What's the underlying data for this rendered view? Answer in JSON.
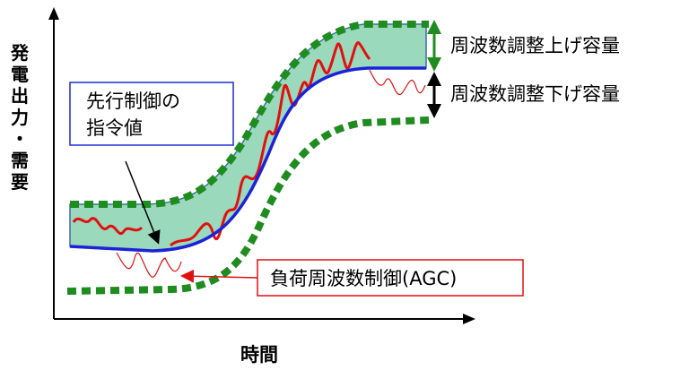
{
  "axes": {
    "y_label": [
      "発",
      "電",
      "出",
      "力",
      "・",
      "需",
      "要"
    ],
    "x_label": "時間"
  },
  "labels": {
    "feedforward_line1": "先行制御の",
    "feedforward_line2": "指令値",
    "agc": "負荷周波数制御(AGC)",
    "up_capacity": "周波数調整上げ容量",
    "down_capacity": "周波数調整下げ容量"
  },
  "colors": {
    "band_fill": "#9ad9bb",
    "dotted_band": "#1f8c1f",
    "command_line": "#1c22d8",
    "demand_line": "#e01010",
    "up_arrow": "#1f8c1f",
    "down_arrow": "#000000",
    "callout_blue": "#1c2bd0",
    "callout_red": "#e01010"
  }
}
